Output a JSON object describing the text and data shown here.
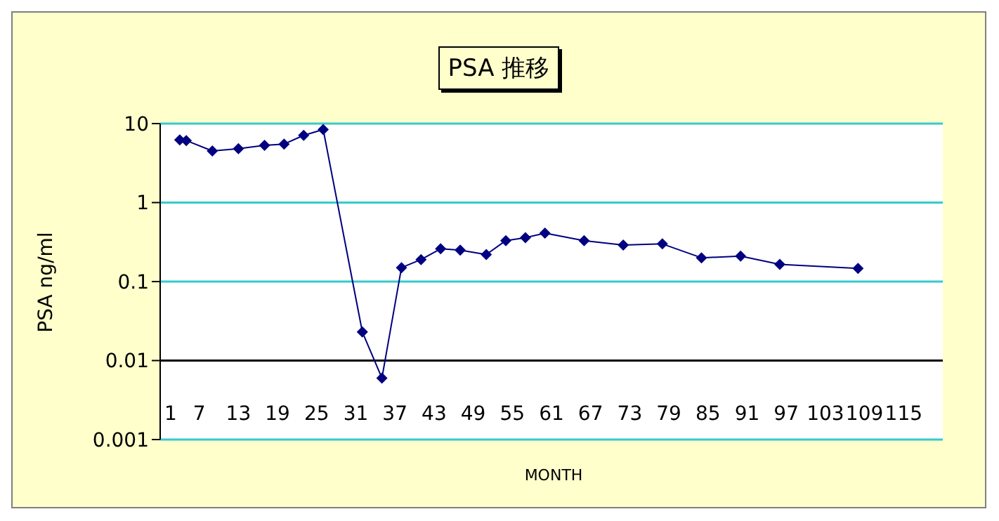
{
  "chart_data": {
    "type": "line",
    "title": "PSA 推移",
    "xlabel": "MONTH",
    "ylabel": "PSA ng/ml",
    "x": [
      4,
      5,
      9,
      13,
      17,
      20,
      23,
      26,
      32,
      35,
      38,
      41,
      44,
      47,
      51,
      54,
      57,
      60,
      66,
      72,
      78,
      84,
      90,
      96,
      108
    ],
    "series": [
      {
        "color": "#000080",
        "values": [
          6.2,
          6.1,
          4.5,
          4.8,
          5.3,
          5.5,
          7.1,
          8.4,
          0.023,
          0.006,
          0.15,
          0.19,
          0.26,
          0.25,
          0.22,
          0.33,
          0.36,
          0.41,
          0.33,
          0.29,
          0.3,
          0.2,
          0.21,
          0.165,
          0.147
        ]
      }
    ],
    "xlim": [
      1,
      121
    ],
    "xticks": [
      1,
      7,
      13,
      19,
      25,
      31,
      37,
      43,
      49,
      55,
      61,
      67,
      73,
      79,
      85,
      91,
      97,
      103,
      109,
      115
    ],
    "ylim": [
      0.001,
      10
    ],
    "yticks": [
      0.001,
      0.01,
      0.1,
      1,
      10
    ],
    "log": "y",
    "grid": "y",
    "marker": "diamond",
    "line_style": "solid",
    "legend": false,
    "ref_lines": [
      {
        "axis": "y",
        "value": 0.01,
        "color": "#000000"
      }
    ]
  }
}
